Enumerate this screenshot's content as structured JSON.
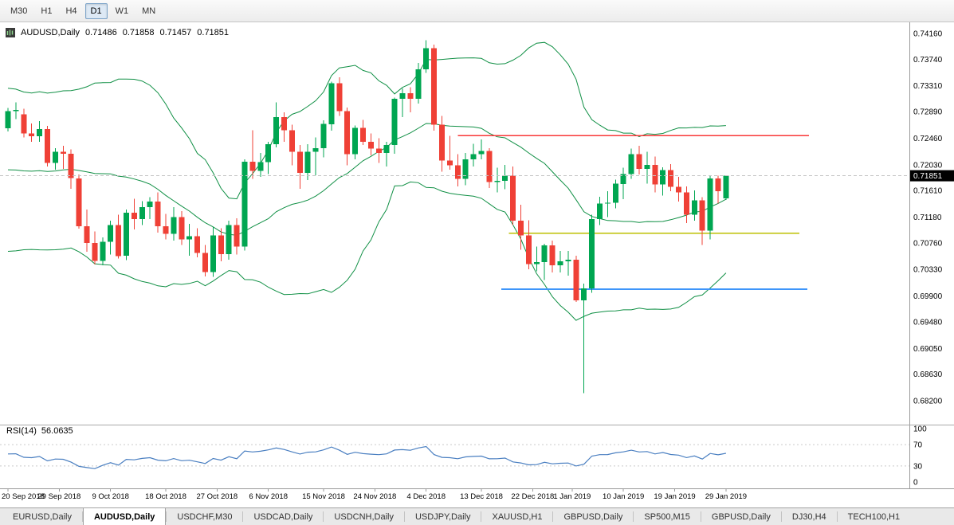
{
  "toolbar": {
    "timeframes": [
      {
        "label": "M30",
        "active": false
      },
      {
        "label": "H1",
        "active": false
      },
      {
        "label": "H4",
        "active": false
      },
      {
        "label": "D1",
        "active": true
      },
      {
        "label": "W1",
        "active": false
      },
      {
        "label": "MN",
        "active": false
      }
    ]
  },
  "chart": {
    "symbol": "AUDUSD,Daily",
    "open": "0.71486",
    "high": "0.71858",
    "low": "0.71457",
    "close": "0.71851",
    "current_price": "0.71851",
    "price_axis": [
      "0.74160",
      "0.73740",
      "0.73310",
      "0.72890",
      "0.72460",
      "0.72030",
      "0.71610",
      "0.71180",
      "0.70760",
      "0.70330",
      "0.69900",
      "0.69480",
      "0.69050",
      "0.68630",
      "0.68200"
    ],
    "colors": {
      "up": "#00a651",
      "down": "#ef4036",
      "bands": "#0f8f44",
      "rsi": "#4a7fc1",
      "badge_bg": "#000000",
      "badge_text": "#ffffff"
    }
  },
  "rsi": {
    "name": "RSI(14)",
    "value": "56.0635",
    "axis": [
      "100",
      "70",
      "30",
      "0"
    ],
    "levels": [
      70,
      30
    ]
  },
  "tabs": [
    {
      "label": "EURUSD,Daily",
      "active": false
    },
    {
      "label": "AUDUSD,Daily",
      "active": true
    },
    {
      "label": "USDCHF,M30",
      "active": false
    },
    {
      "label": "USDCAD,Daily",
      "active": false
    },
    {
      "label": "USDCNH,Daily",
      "active": false
    },
    {
      "label": "USDJPY,Daily",
      "active": false
    },
    {
      "label": "XAUUSD,H1",
      "active": false
    },
    {
      "label": "GBPUSD,Daily",
      "active": false
    },
    {
      "label": "SP500,M15",
      "active": false
    },
    {
      "label": "GBPUSD,Daily",
      "active": false
    },
    {
      "label": "DJ30,H4",
      "active": false
    },
    {
      "label": "TECH100,H1",
      "active": false
    }
  ],
  "chart_data": {
    "type": "candlestick",
    "symbol": "AUDUSD",
    "timeframe": "Daily",
    "ylim": [
      0.682,
      0.7416
    ],
    "indicators": [
      {
        "name": "Bollinger Bands",
        "period": 20,
        "deviation": 2,
        "color": "#0f8f44"
      },
      {
        "name": "RSI",
        "period": 14,
        "value": 56.0635,
        "color": "#4a7fc1",
        "scale": [
          0,
          100
        ]
      }
    ],
    "hlines": [
      {
        "name": "resistance-red",
        "color": "#f83737",
        "price": 0.725,
        "from_index": 57,
        "to_index": 101.5
      },
      {
        "name": "support-yellow",
        "color": "#bdc000",
        "price": 0.7092,
        "from_index": 63.5,
        "to_index": 100.3
      },
      {
        "name": "support-blue",
        "color": "#3e95fa",
        "price": 0.7001,
        "from_index": 62.5,
        "to_index": 101.3
      }
    ],
    "date_ticks": [
      [
        "20 Sep 2018",
        0
      ],
      [
        "29 Sep 2018",
        6.5
      ],
      [
        "9 Oct 2018",
        13
      ],
      [
        "18 Oct 2018",
        20
      ],
      [
        "27 Oct 2018",
        26.5
      ],
      [
        "6 Nov 2018",
        33
      ],
      [
        "15 Nov 2018",
        40
      ],
      [
        "24 Nov 2018",
        46.5
      ],
      [
        "4 Dec 2018",
        53
      ],
      [
        "13 Dec 2018",
        60
      ],
      [
        "22 Dec 2018",
        66.5
      ],
      [
        "1 Jan 2019",
        71.5
      ],
      [
        "10 Jan 2019",
        78
      ],
      [
        "19 Jan 2019",
        84.5
      ],
      [
        "29 Jan 2019",
        91
      ]
    ],
    "candles": [
      [
        "2018-09-20",
        0.7262,
        0.7295,
        0.7257,
        0.729
      ],
      [
        "2018-09-21",
        0.729,
        0.7304,
        0.7277,
        0.7292
      ],
      [
        "2018-09-24",
        0.7285,
        0.7294,
        0.7247,
        0.7254
      ],
      [
        "2018-09-25",
        0.7254,
        0.727,
        0.724,
        0.7249
      ],
      [
        "2018-09-26",
        0.7249,
        0.7274,
        0.724,
        0.7261
      ],
      [
        "2018-09-27",
        0.7261,
        0.7266,
        0.72,
        0.7206
      ],
      [
        "2018-09-28",
        0.7206,
        0.723,
        0.7195,
        0.7224
      ],
      [
        "2018-10-01",
        0.7224,
        0.7234,
        0.7196,
        0.7221
      ],
      [
        "2018-10-02",
        0.7221,
        0.7228,
        0.7164,
        0.7181
      ],
      [
        "2018-10-03",
        0.7181,
        0.7187,
        0.7099,
        0.7103
      ],
      [
        "2018-10-04",
        0.7103,
        0.713,
        0.7062,
        0.7076
      ],
      [
        "2018-10-05",
        0.7076,
        0.7095,
        0.7041,
        0.7047
      ],
      [
        "2018-10-08",
        0.7047,
        0.7085,
        0.704,
        0.7078
      ],
      [
        "2018-10-09",
        0.7078,
        0.7112,
        0.7057,
        0.7105
      ],
      [
        "2018-10-10",
        0.7105,
        0.7122,
        0.7051,
        0.7055
      ],
      [
        "2018-10-11",
        0.7055,
        0.713,
        0.7048,
        0.7125
      ],
      [
        "2018-10-12",
        0.7125,
        0.7148,
        0.7098,
        0.7115
      ],
      [
        "2018-10-15",
        0.7115,
        0.7144,
        0.7105,
        0.7134
      ],
      [
        "2018-10-16",
        0.7134,
        0.715,
        0.7115,
        0.7143
      ],
      [
        "2018-10-17",
        0.7143,
        0.7158,
        0.7093,
        0.7103
      ],
      [
        "2018-10-18",
        0.7103,
        0.7123,
        0.7082,
        0.7091
      ],
      [
        "2018-10-19",
        0.7091,
        0.7134,
        0.708,
        0.7118
      ],
      [
        "2018-10-22",
        0.7118,
        0.7128,
        0.7073,
        0.7082
      ],
      [
        "2018-10-23",
        0.7082,
        0.7107,
        0.7055,
        0.7087
      ],
      [
        "2018-10-24",
        0.7087,
        0.71,
        0.7053,
        0.706
      ],
      [
        "2018-10-25",
        0.706,
        0.7073,
        0.7022,
        0.7029
      ],
      [
        "2018-10-26",
        0.7029,
        0.7102,
        0.7021,
        0.7088
      ],
      [
        "2018-10-29",
        0.7088,
        0.71,
        0.7046,
        0.7058
      ],
      [
        "2018-10-30",
        0.7058,
        0.7112,
        0.7049,
        0.7105
      ],
      [
        "2018-10-31",
        0.7105,
        0.7116,
        0.7057,
        0.707
      ],
      [
        "2018-11-01",
        0.707,
        0.7212,
        0.7064,
        0.7208
      ],
      [
        "2018-11-02",
        0.7208,
        0.7259,
        0.718,
        0.7193
      ],
      [
        "2018-11-05",
        0.7193,
        0.7222,
        0.7183,
        0.7207
      ],
      [
        "2018-11-06",
        0.7207,
        0.724,
        0.7188,
        0.7236
      ],
      [
        "2018-11-07",
        0.7236,
        0.7304,
        0.7231,
        0.728
      ],
      [
        "2018-11-08",
        0.728,
        0.7288,
        0.724,
        0.7259
      ],
      [
        "2018-11-09",
        0.7259,
        0.7268,
        0.7202,
        0.7224
      ],
      [
        "2018-11-12",
        0.7224,
        0.7235,
        0.7164,
        0.719
      ],
      [
        "2018-11-13",
        0.719,
        0.7236,
        0.7178,
        0.7224
      ],
      [
        "2018-11-14",
        0.7224,
        0.7247,
        0.7186,
        0.723
      ],
      [
        "2018-11-15",
        0.723,
        0.7275,
        0.7215,
        0.7269
      ],
      [
        "2018-11-16",
        0.7269,
        0.7338,
        0.7258,
        0.7335
      ],
      [
        "2018-11-19",
        0.7335,
        0.7345,
        0.7282,
        0.729
      ],
      [
        "2018-11-20",
        0.729,
        0.7296,
        0.7202,
        0.722
      ],
      [
        "2018-11-21",
        0.722,
        0.7267,
        0.7212,
        0.7263
      ],
      [
        "2018-11-22",
        0.7263,
        0.7276,
        0.7235,
        0.724
      ],
      [
        "2018-11-23",
        0.724,
        0.7254,
        0.7218,
        0.7229
      ],
      [
        "2018-11-26",
        0.7229,
        0.7246,
        0.7206,
        0.7222
      ],
      [
        "2018-11-27",
        0.7222,
        0.724,
        0.72,
        0.7235
      ],
      [
        "2018-11-28",
        0.7235,
        0.7312,
        0.7221,
        0.731
      ],
      [
        "2018-11-29",
        0.731,
        0.7327,
        0.728,
        0.7319
      ],
      [
        "2018-11-30",
        0.7319,
        0.7329,
        0.7288,
        0.731
      ],
      [
        "2018-12-03",
        0.731,
        0.7368,
        0.7302,
        0.7358
      ],
      [
        "2018-12-04",
        0.7358,
        0.7405,
        0.7352,
        0.7392
      ],
      [
        "2018-12-05",
        0.7392,
        0.7398,
        0.7258,
        0.7268
      ],
      [
        "2018-12-06",
        0.7268,
        0.7282,
        0.7192,
        0.721
      ],
      [
        "2018-12-07",
        0.721,
        0.725,
        0.7195,
        0.7202
      ],
      [
        "2018-12-10",
        0.7202,
        0.722,
        0.7168,
        0.718
      ],
      [
        "2018-12-11",
        0.718,
        0.7222,
        0.717,
        0.7212
      ],
      [
        "2018-12-12",
        0.7212,
        0.7237,
        0.72,
        0.722
      ],
      [
        "2018-12-13",
        0.722,
        0.7244,
        0.7212,
        0.7225
      ],
      [
        "2018-12-14",
        0.7225,
        0.723,
        0.7165,
        0.7175
      ],
      [
        "2018-12-17",
        0.7175,
        0.7198,
        0.7158,
        0.7177
      ],
      [
        "2018-12-18",
        0.7177,
        0.7203,
        0.7163,
        0.7185
      ],
      [
        "2018-12-19",
        0.7185,
        0.72,
        0.7105,
        0.7112
      ],
      [
        "2018-12-20",
        0.7112,
        0.7138,
        0.7065,
        0.7088
      ],
      [
        "2018-12-21",
        0.7088,
        0.7113,
        0.7033,
        0.7042
      ],
      [
        "2018-12-24",
        0.7042,
        0.707,
        0.703,
        0.7045
      ],
      [
        "2018-12-26",
        0.7045,
        0.7075,
        0.7016,
        0.7072
      ],
      [
        "2018-12-27",
        0.7072,
        0.708,
        0.7028,
        0.704
      ],
      [
        "2018-12-28",
        0.704,
        0.7063,
        0.7028,
        0.7046
      ],
      [
        "2018-12-31",
        0.7046,
        0.7063,
        0.7023,
        0.7049
      ],
      [
        "2019-01-02",
        0.7049,
        0.7055,
        0.698,
        0.6983
      ],
      [
        "2019-01-03",
        0.6983,
        0.701,
        0.6832,
        0.7002
      ],
      [
        "2019-01-04",
        0.7002,
        0.7122,
        0.6995,
        0.7115
      ],
      [
        "2019-01-07",
        0.7115,
        0.7151,
        0.7105,
        0.714
      ],
      [
        "2019-01-08",
        0.714,
        0.716,
        0.7118,
        0.7141
      ],
      [
        "2019-01-09",
        0.7141,
        0.7179,
        0.7132,
        0.7172
      ],
      [
        "2019-01-10",
        0.7172,
        0.7198,
        0.7147,
        0.7188
      ],
      [
        "2019-01-11",
        0.7188,
        0.7229,
        0.718,
        0.722
      ],
      [
        "2019-01-14",
        0.722,
        0.7234,
        0.7187,
        0.7196
      ],
      [
        "2019-01-15",
        0.7196,
        0.7224,
        0.7172,
        0.7203
      ],
      [
        "2019-01-16",
        0.7203,
        0.7216,
        0.7158,
        0.7171
      ],
      [
        "2019-01-17",
        0.7171,
        0.7199,
        0.7153,
        0.7194
      ],
      [
        "2019-01-18",
        0.7194,
        0.7204,
        0.716,
        0.7167
      ],
      [
        "2019-01-21",
        0.7167,
        0.7183,
        0.7143,
        0.7158
      ],
      [
        "2019-01-22",
        0.7158,
        0.7168,
        0.7108,
        0.7122
      ],
      [
        "2019-01-23",
        0.7122,
        0.7161,
        0.7112,
        0.7145
      ],
      [
        "2019-01-24",
        0.7145,
        0.715,
        0.7073,
        0.7096
      ],
      [
        "2019-01-25",
        0.7096,
        0.7185,
        0.7082,
        0.7181
      ],
      [
        "2019-01-28",
        0.7181,
        0.7185,
        0.714,
        0.716
      ],
      [
        "2019-01-29",
        0.71486,
        0.71858,
        0.71457,
        0.71851
      ]
    ]
  }
}
